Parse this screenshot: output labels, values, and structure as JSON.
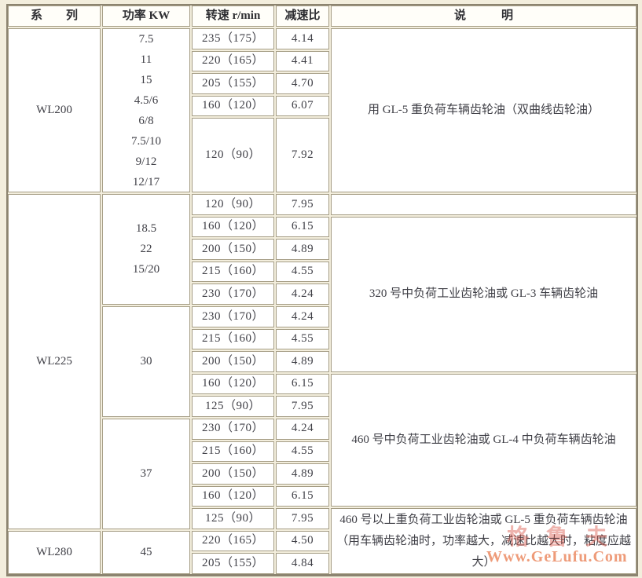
{
  "columns": {
    "series": "系　　列",
    "power": "功率 KW",
    "speed": "转速 r/min",
    "ratio": "减速比",
    "note": "说　　　明"
  },
  "series": {
    "wl200": "WL200",
    "wl225": "WL225",
    "wl280": "WL280"
  },
  "power": {
    "wl200": [
      "7.5",
      "11",
      "15",
      "4.5/6",
      "6/8",
      "7.5/10",
      "9/12",
      "12/17"
    ],
    "wl225_g1": [
      "18.5",
      "22",
      "15/20"
    ],
    "wl225_g2": "30",
    "wl225_g3": "37",
    "wl280": "45"
  },
  "rows": [
    {
      "speed": "235（175）",
      "ratio": "4.14"
    },
    {
      "speed": "220（165）",
      "ratio": "4.41"
    },
    {
      "speed": "205（155）",
      "ratio": "4.70"
    },
    {
      "speed": "160（120）",
      "ratio": "6.07"
    },
    {
      "speed": "120（90）",
      "ratio": "7.92"
    },
    {
      "speed": "120（90）",
      "ratio": "7.95"
    },
    {
      "speed": "160（120）",
      "ratio": "6.15"
    },
    {
      "speed": "200（150）",
      "ratio": "4.89"
    },
    {
      "speed": "215（160）",
      "ratio": "4.55"
    },
    {
      "speed": "230（170）",
      "ratio": "4.24"
    },
    {
      "speed": "230（170）",
      "ratio": "4.24"
    },
    {
      "speed": "215（160）",
      "ratio": "4.55"
    },
    {
      "speed": "200（150）",
      "ratio": "4.89"
    },
    {
      "speed": "160（120）",
      "ratio": "6.15"
    },
    {
      "speed": "125（90）",
      "ratio": "7.95"
    },
    {
      "speed": "230（170）",
      "ratio": "4.24"
    },
    {
      "speed": "215（160）",
      "ratio": "4.55"
    },
    {
      "speed": "200（150）",
      "ratio": "4.89"
    },
    {
      "speed": "160（120）",
      "ratio": "6.15"
    },
    {
      "speed": "125（90）",
      "ratio": "7.95"
    },
    {
      "speed": "220（165）",
      "ratio": "4.50"
    },
    {
      "speed": "205（155）",
      "ratio": "4.84"
    }
  ],
  "notes": {
    "wl200": "用 GL-5 重负荷车辆齿轮油（双曲线齿轮油）",
    "wl225_a": "320 号中负荷工业齿轮油或 GL-3 车辆齿轮油",
    "wl225_b": "460 号中负荷工业齿轮油或 GL-4 中负荷车辆齿轮油",
    "wl280": "460 号以上重负荷工业齿轮油或 GL-5 重负荷车辆齿轮油（用车辆齿轮油时，功率越大，减速比越大时，粘度应越大）",
    "empty": ""
  },
  "watermark": {
    "cn": "格鲁夫",
    "url": "Www.GeLufu.Com",
    "url_color": "#ee9b79"
  }
}
